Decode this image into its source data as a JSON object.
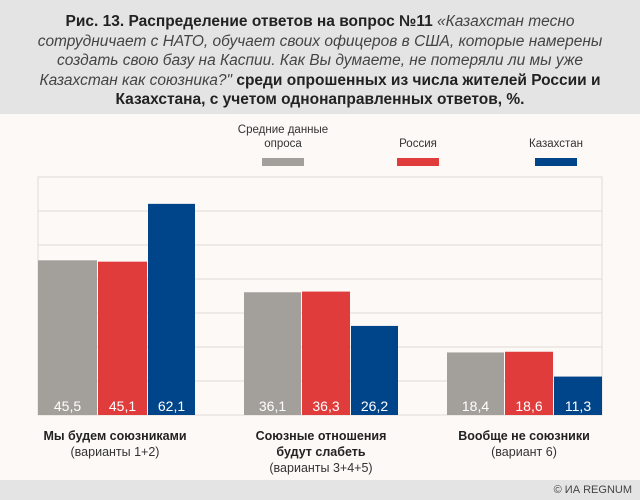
{
  "title": {
    "bold": "Рис. 13. Распределение ответов на вопрос №11 ",
    "italic": "«Казахстан тесно сотрудничает с НАТО, обучает своих офицеров в США, которые намерены создать свою базу на Каспии. Как Вы думаете, не потеряли ли мы уже Казахстан как союзника?\"",
    "bold2": " среди опрошенных из числа жителей России и Казахстана, с учетом однонаправленных ответов, %."
  },
  "footer": "© ИА REGNUM",
  "chart_data": {
    "type": "bar",
    "ylim": [
      0,
      70
    ],
    "grid": true,
    "legend_placement": "top-right",
    "categories": [
      {
        "label": "Мы будем союзниками",
        "sub": "(варианты 1+2)"
      },
      {
        "label": "Союзные отношения будут слабеть",
        "label_lines": [
          "Союзные отношения",
          "будут слабеть"
        ],
        "sub": "(варианты 3+4+5)"
      },
      {
        "label": "Вообще не союзники",
        "sub": "(вариант 6)"
      }
    ],
    "series": [
      {
        "name": "Средние данные опроса",
        "name_lines": [
          "Средние данные",
          "опроса"
        ],
        "color": "#a39f9a",
        "values": [
          45.5,
          36.1,
          18.4
        ],
        "labels": [
          "45,5",
          "36,1",
          "18,4"
        ]
      },
      {
        "name": "Россия",
        "name_lines": [
          "Россия"
        ],
        "color": "#e03c3c",
        "values": [
          45.1,
          36.3,
          18.6
        ],
        "labels": [
          "45,1",
          "36,3",
          "18,6"
        ]
      },
      {
        "name": "Казахстан",
        "name_lines": [
          "Казахстан"
        ],
        "color": "#00458a",
        "values": [
          62.1,
          26.2,
          11.3
        ],
        "labels": [
          "62,1",
          "26,2",
          "11,3"
        ]
      }
    ]
  }
}
